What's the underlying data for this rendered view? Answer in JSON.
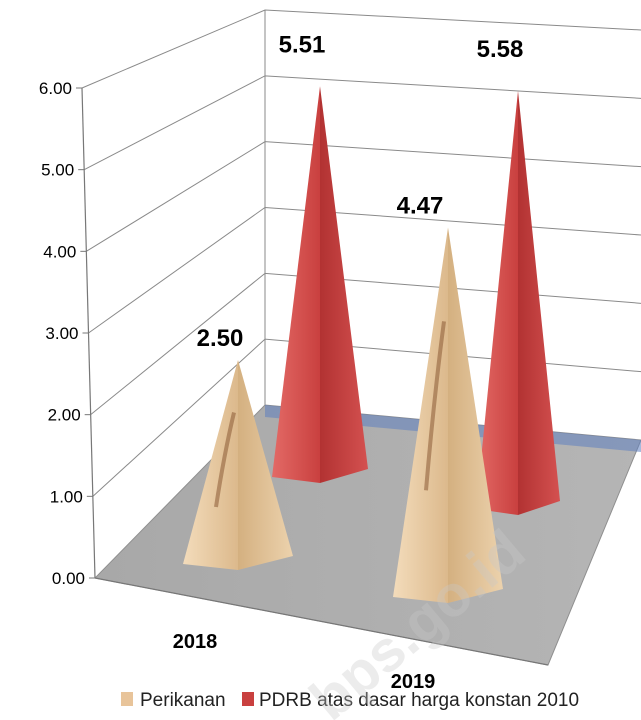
{
  "chart_data": {
    "type": "bar",
    "style": "3d-pyramid",
    "categories": [
      "2018",
      "2019"
    ],
    "series": [
      {
        "name": "Perikanan",
        "values": [
          2.5,
          4.47
        ],
        "color": "#e8c49a"
      },
      {
        "name": "PDRB atas dasar harga konstan 2010",
        "values": [
          5.51,
          5.58
        ],
        "color": "#c9403f"
      }
    ],
    "value_labels": [
      "2.50",
      "5.51",
      "4.47",
      "5.58"
    ],
    "y_ticks": [
      "0.00",
      "1.00",
      "2.00",
      "3.00",
      "4.00",
      "5.00",
      "6.00"
    ],
    "ylim": [
      0,
      6
    ],
    "grid": true,
    "legend_position": "bottom",
    "watermark": "bps.go.id"
  }
}
